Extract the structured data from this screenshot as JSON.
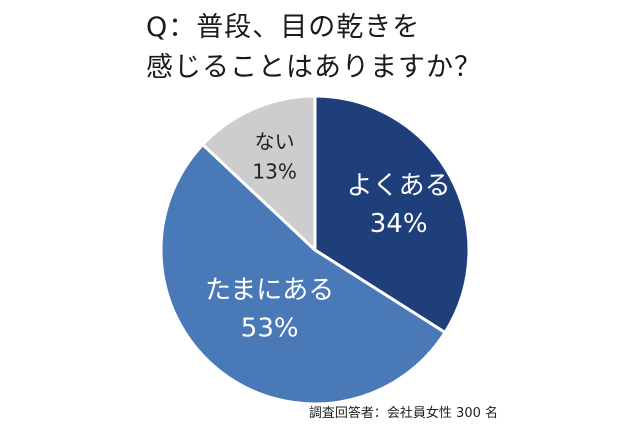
{
  "title": {
    "line1": "Q：普段、目の乾きを",
    "line2": "感じることはありますか？"
  },
  "footnote": "調査回答者：会社員女性 300 名",
  "colors": {
    "often": "#1f3f7a",
    "sometimes": "#4a79b8",
    "never": "#cdcdcd",
    "often_text": "#ffffff",
    "sometimes_text": "#ffffff",
    "never_text": "#222222"
  },
  "chart_data": {
    "type": "pie",
    "title": "",
    "slices": [
      {
        "label": "よくある",
        "value": 34,
        "value_label": "34%",
        "color": "#1f3f7a",
        "text_color": "#ffffff"
      },
      {
        "label": "たまにある",
        "value": 53,
        "value_label": "53%",
        "color": "#4a79b8",
        "text_color": "#ffffff"
      },
      {
        "label": "ない",
        "value": 13,
        "value_label": "13%",
        "color": "#cdcdcd",
        "text_color": "#222222"
      }
    ],
    "start_angle_deg": 0,
    "direction": "clockwise"
  }
}
